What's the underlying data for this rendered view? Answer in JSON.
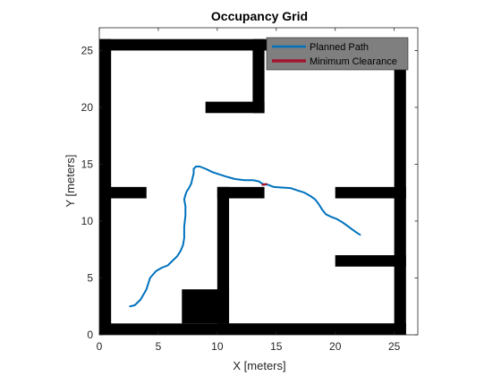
{
  "chart_data": {
    "type": "occupancy-grid",
    "title": "Occupancy Grid",
    "xlabel": "X [meters]",
    "ylabel": "Y [meters]",
    "xlim": [
      0,
      27
    ],
    "ylim": [
      0,
      27
    ],
    "xticks": [
      0,
      5,
      10,
      15,
      20,
      25
    ],
    "yticks": [
      0,
      5,
      10,
      15,
      20,
      25
    ],
    "occupied_color": "#000000",
    "free_color": "#ffffff",
    "obstacles": [
      {
        "name": "left-wall",
        "x": [
          0,
          1
        ],
        "y": [
          0,
          26
        ]
      },
      {
        "name": "top-wall",
        "x": [
          0,
          26
        ],
        "y": [
          25,
          26
        ]
      },
      {
        "name": "right-wall",
        "x": [
          25,
          26
        ],
        "y": [
          0,
          26
        ]
      },
      {
        "name": "bottom-wall",
        "x": [
          0,
          26
        ],
        "y": [
          0,
          1
        ]
      },
      {
        "name": "top-inner-vertical",
        "x": [
          13,
          14
        ],
        "y": [
          19.5,
          26
        ]
      },
      {
        "name": "top-inner-horizontal",
        "x": [
          9,
          14
        ],
        "y": [
          19.5,
          20.5
        ]
      },
      {
        "name": "left-stub",
        "x": [
          0,
          4
        ],
        "y": [
          12,
          13
        ]
      },
      {
        "name": "center-horizontal",
        "x": [
          10,
          14
        ],
        "y": [
          12,
          13
        ]
      },
      {
        "name": "center-vertical",
        "x": [
          10,
          11
        ],
        "y": [
          1,
          13
        ]
      },
      {
        "name": "bottom-block",
        "x": [
          7,
          11
        ],
        "y": [
          1,
          4
        ]
      },
      {
        "name": "right-upper-stub",
        "x": [
          20,
          26
        ],
        "y": [
          12,
          13
        ]
      },
      {
        "name": "right-lower-stub",
        "x": [
          20,
          26
        ],
        "y": [
          6,
          7
        ]
      },
      {
        "name": "bottom-horizontal",
        "x": [
          10,
          26
        ],
        "y": [
          1,
          1
        ]
      }
    ],
    "series": [
      {
        "name": "Planned Path",
        "color": "#0072bd",
        "x": [
          2.6,
          3.0,
          3.5,
          4.0,
          4.3,
          4.8,
          5.3,
          5.8,
          6.2,
          6.6,
          6.9,
          7.1,
          7.2,
          7.2,
          7.3,
          7.3,
          7.2,
          7.3,
          7.4,
          7.6,
          7.8,
          7.9,
          8.0,
          8.0,
          8.2,
          8.5,
          9.0,
          9.6,
          10.2,
          10.8,
          11.5,
          12.3,
          13.0,
          13.5,
          13.8,
          14.0,
          14.3,
          14.8,
          15.5,
          16.2,
          16.8,
          17.4,
          17.9,
          18.3,
          18.6,
          18.9,
          19.2,
          19.6,
          20.1,
          20.6,
          21.0,
          21.4,
          21.8,
          22.1
        ],
        "y": [
          2.5,
          2.6,
          3.1,
          4.0,
          5.0,
          5.6,
          5.9,
          6.1,
          6.5,
          6.9,
          7.4,
          7.9,
          8.5,
          9.5,
          10.5,
          11.3,
          11.9,
          12.3,
          12.6,
          12.9,
          13.3,
          13.8,
          14.2,
          14.6,
          14.8,
          14.8,
          14.6,
          14.3,
          14.1,
          13.9,
          13.7,
          13.6,
          13.6,
          13.5,
          13.3,
          13.2,
          13.2,
          13.0,
          12.95,
          12.9,
          12.7,
          12.5,
          12.2,
          11.9,
          11.5,
          11.0,
          10.6,
          10.4,
          10.2,
          9.9,
          9.6,
          9.3,
          9.0,
          8.8
        ]
      },
      {
        "name": "Minimum Clearance",
        "color": "#a2142f",
        "x": [
          13.85,
          14.15
        ],
        "y": [
          13.2,
          13.25
        ]
      }
    ],
    "legend": {
      "position": "top-right",
      "background": "#7f7f7f",
      "entries": [
        "Planned Path",
        "Minimum Clearance"
      ]
    }
  }
}
